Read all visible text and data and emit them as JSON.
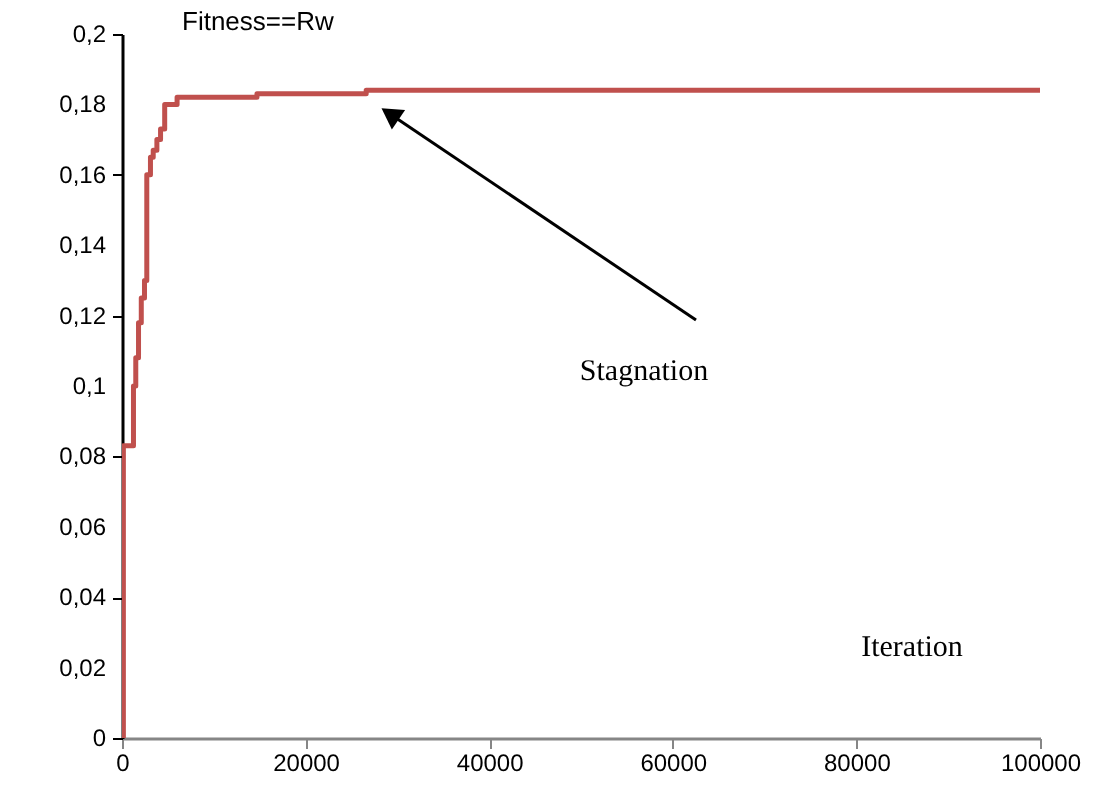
{
  "chart_data": {
    "type": "step",
    "ylabel": "Fitness==Rw",
    "xlabel": "Iteration",
    "x": [
      0,
      150,
      1250,
      1500,
      1800,
      2100,
      2450,
      2700,
      3100,
      3400,
      3800,
      4200,
      4650,
      6000,
      14700,
      26600,
      100000
    ],
    "series": [
      {
        "color": "#c0504d",
        "values": [
          0,
          0.083,
          0.1,
          0.108,
          0.118,
          0.125,
          0.13,
          0.16,
          0.165,
          0.167,
          0.17,
          0.173,
          0.18,
          0.182,
          0.183,
          0.184,
          0.184
        ]
      }
    ],
    "xlim": [
      0,
      100000
    ],
    "xticks": [
      0,
      20000,
      40000,
      60000,
      80000,
      100000
    ],
    "ylim": [
      0,
      0.2
    ],
    "yticks": [
      {
        "value": 0,
        "label": "0"
      },
      {
        "value": 0.02,
        "label": "0,02"
      },
      {
        "value": 0.04,
        "label": "0,04"
      },
      {
        "value": 0.06,
        "label": "0,06"
      },
      {
        "value": 0.08,
        "label": "0,08"
      },
      {
        "value": 0.1,
        "label": "0,1"
      },
      {
        "value": 0.12,
        "label": "0,12"
      },
      {
        "value": 0.14,
        "label": "0,14"
      },
      {
        "value": 0.16,
        "label": "0,16"
      },
      {
        "value": 0.18,
        "label": "0,18"
      },
      {
        "value": 0.2,
        "label": "0,2"
      }
    ],
    "annotations": [
      "Stagnation"
    ],
    "grid": false
  }
}
